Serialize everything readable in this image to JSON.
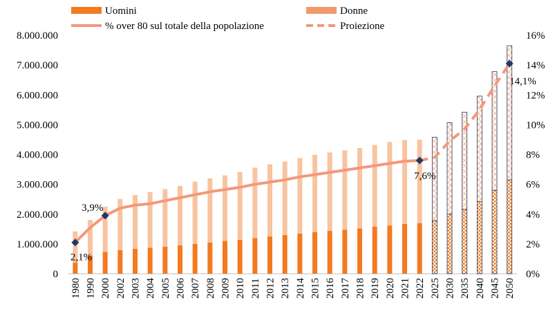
{
  "chart_data": {
    "type": "bar",
    "categories": [
      "1980",
      "1990",
      "2000",
      "2002",
      "2003",
      "2004",
      "2005",
      "2006",
      "2007",
      "2008",
      "2009",
      "2010",
      "2011",
      "2012",
      "2013",
      "2014",
      "2015",
      "2016",
      "2017",
      "2018",
      "2019",
      "2020",
      "2021",
      "2022",
      "2025",
      "2030",
      "2035",
      "2040",
      "2045",
      "2050"
    ],
    "projection_from": "2025",
    "y_left": {
      "lim": [
        0,
        8000000
      ],
      "ticks": [
        "0",
        "1.000.000",
        "2.000.000",
        "3.000.000",
        "4.000.000",
        "5.000.000",
        "6.000.000",
        "7.000.000",
        "8.000.000"
      ]
    },
    "y_right": {
      "lim": [
        0,
        16
      ],
      "ticks": [
        "0%",
        "2%",
        "4%",
        "6%",
        "8%",
        "10%",
        "12%",
        "14%",
        "16%"
      ]
    },
    "legend": {
      "uomini": "Uomini",
      "donne": "Donne",
      "pct": "% over 80 sul totale della popolazione",
      "proiezione": "Proiezione"
    },
    "series": [
      {
        "name": "Uomini",
        "values": [
          370000,
          620000,
          730000,
          790000,
          840000,
          870000,
          910000,
          950000,
          1000000,
          1050000,
          1100000,
          1140000,
          1200000,
          1250000,
          1300000,
          1350000,
          1400000,
          1440000,
          1480000,
          1520000,
          1580000,
          1620000,
          1670000,
          1700000,
          1780000,
          2000000,
          2160000,
          2420000,
          2800000,
          3150000
        ]
      },
      {
        "name": "Donne",
        "values": [
          1050000,
          1180000,
          1520000,
          1720000,
          1800000,
          1870000,
          1930000,
          2000000,
          2090000,
          2150000,
          2200000,
          2270000,
          2360000,
          2420000,
          2470000,
          2530000,
          2590000,
          2630000,
          2660000,
          2700000,
          2740000,
          2800000,
          2820000,
          2800000,
          2800000,
          3070000,
          3260000,
          3540000,
          3980000,
          4500000
        ]
      },
      {
        "name": "% over 80 sul totale della popolazione",
        "values": [
          2.1,
          3.1,
          3.9,
          4.4,
          4.6,
          4.7,
          4.9,
          5.1,
          5.3,
          5.5,
          5.65,
          5.8,
          6.0,
          6.15,
          6.3,
          6.5,
          6.65,
          6.8,
          6.95,
          7.1,
          7.25,
          7.4,
          7.55,
          7.6,
          null,
          null,
          null,
          null,
          null,
          null
        ]
      },
      {
        "name": "Proiezione",
        "values": [
          null,
          null,
          null,
          null,
          null,
          null,
          null,
          null,
          null,
          null,
          null,
          null,
          null,
          null,
          null,
          null,
          null,
          null,
          null,
          null,
          null,
          null,
          null,
          7.6,
          7.8,
          8.9,
          9.7,
          11.0,
          12.6,
          14.1
        ]
      }
    ],
    "markers": [
      {
        "category": "1980",
        "label": "2,1%"
      },
      {
        "category": "2000",
        "label": "3,9%"
      },
      {
        "category": "2022",
        "label": "7,6%"
      },
      {
        "category": "2050",
        "label": "14,1%"
      }
    ],
    "colors": {
      "uomini": "#f47a1f",
      "donne": "#f8c4a0",
      "legend_donne": "#f09a6b",
      "line": "#f3987a",
      "marker": "#1f3864",
      "hatch_border": "#1f3864"
    }
  }
}
